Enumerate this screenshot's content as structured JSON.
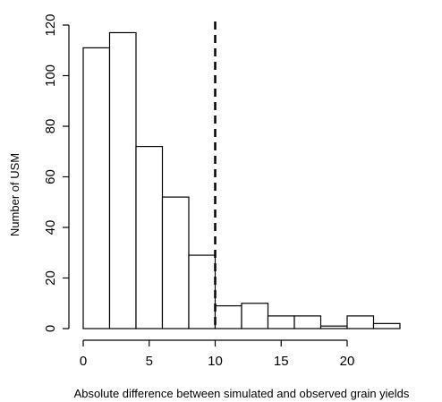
{
  "chart_data": {
    "type": "bar",
    "subtype": "histogram",
    "title": "",
    "xlabel": "Absolute difference between simulated and observed grain yields",
    "ylabel": "Number of USM",
    "bin_edges": [
      0,
      2,
      4,
      6,
      8,
      10,
      12,
      14,
      16,
      18,
      20,
      22,
      24
    ],
    "values": [
      111,
      117,
      72,
      52,
      29,
      9,
      10,
      5,
      5,
      1,
      5,
      2
    ],
    "xlim": [
      0,
      24
    ],
    "ylim": [
      0,
      120
    ],
    "x_ticks": [
      "0",
      "5",
      "10",
      "15",
      "20"
    ],
    "y_ticks": [
      "0",
      "20",
      "40",
      "60",
      "80",
      "100",
      "120"
    ],
    "reference_line": {
      "x": 10,
      "style": "dashed"
    },
    "grid": false,
    "bar_fill": "#ffffff",
    "bar_stroke": "#000000"
  }
}
